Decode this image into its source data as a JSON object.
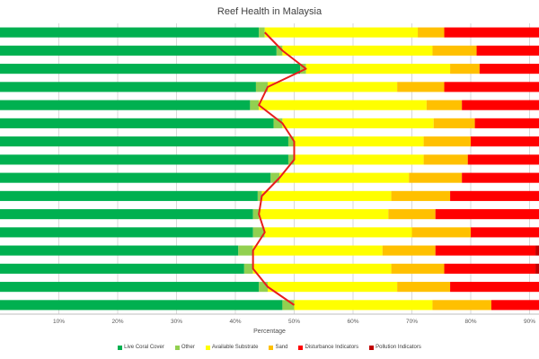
{
  "chart_data": {
    "type": "bar",
    "orientation": "horizontal",
    "stacked": "percent",
    "title": "Reef Health in Malaysia",
    "xlabel": "Percentage",
    "ylabel": "",
    "xlim": [
      0,
      100
    ],
    "x_ticks": [
      "10%",
      "20%",
      "30%",
      "40%",
      "50%",
      "60%",
      "70%",
      "80%",
      "90%"
    ],
    "grid": "vertical",
    "legend_position": "bottom",
    "series": [
      {
        "name": "Live Coral Cover",
        "color": "#00b050",
        "values": [
          44,
          47,
          51,
          43.5,
          42.5,
          46.5,
          49,
          49,
          46,
          43.8,
          43,
          43,
          40.5,
          41.5,
          44,
          48
        ]
      },
      {
        "name": "Other",
        "color": "#92d050",
        "values": [
          1,
          1,
          1,
          2,
          1.5,
          1.5,
          1,
          1,
          1.5,
          0.7,
          1,
          2,
          2.5,
          1.5,
          1.5,
          2
        ]
      },
      {
        "name": "Available Substrate",
        "color": "#ffff00",
        "values": [
          26,
          25.5,
          24.5,
          22,
          28.5,
          25.7,
          22,
          22,
          22,
          22,
          22,
          25,
          22,
          23.5,
          22,
          23.5
        ]
      },
      {
        "name": "Sand",
        "color": "#ffc000",
        "values": [
          4.5,
          7.5,
          5,
          8,
          6,
          7,
          8,
          7.5,
          9,
          10,
          8,
          10,
          9,
          9,
          9,
          10
        ]
      },
      {
        "name": "Disturbance Indicators",
        "color": "#ff0000",
        "values": [
          19,
          12,
          12,
          24.5,
          14.5,
          19.3,
          20,
          20.5,
          21.5,
          23.5,
          26,
          20,
          17,
          15.5,
          23.5,
          16.5
        ]
      },
      {
        "name": "Pollution Indicators",
        "color": "#c00000",
        "values": [
          5.5,
          1,
          0.5,
          0,
          1,
          0,
          0,
          0,
          0,
          0,
          0,
          0,
          3,
          3,
          0,
          0
        ]
      }
    ],
    "trend_line": {
      "color": "#e81c1c",
      "values": [
        45,
        48,
        52,
        45.5,
        44,
        48,
        50,
        50,
        47.5,
        44.5,
        44,
        45,
        43,
        43,
        45.5,
        50
      ]
    }
  }
}
